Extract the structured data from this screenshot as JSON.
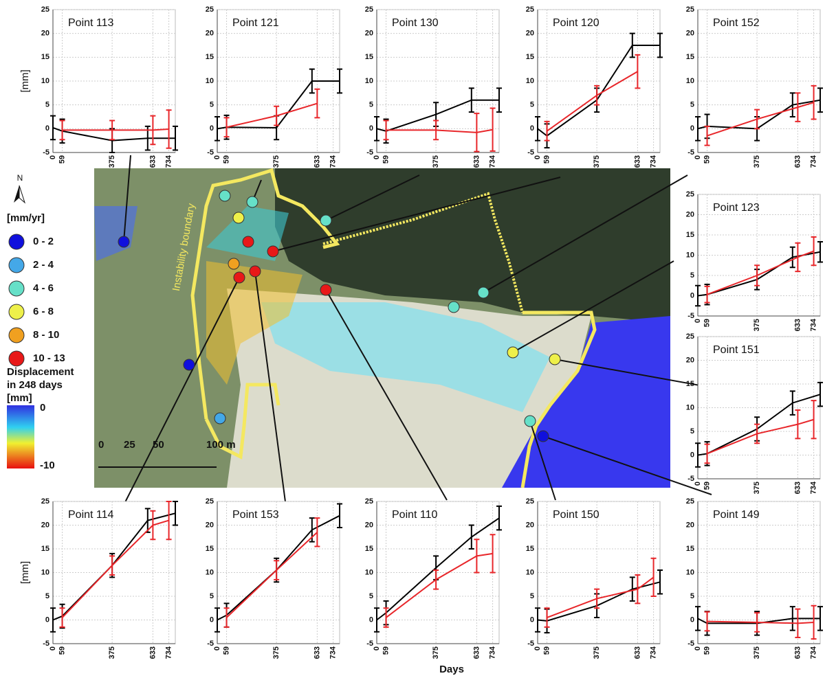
{
  "chart_data": [
    {
      "type": "line",
      "title": "Point 113",
      "ylabel": "[mm]",
      "xlim": [
        0,
        775
      ],
      "ylim": [
        -5,
        25
      ],
      "xticks": [
        0,
        59,
        375,
        633,
        734
      ],
      "yticks": [
        -5,
        0,
        5,
        10,
        15,
        20,
        25
      ],
      "grid": true,
      "series": [
        {
          "color": "#000000",
          "x": [
            0,
            59,
            375,
            600,
            775
          ],
          "values": [
            0.2,
            -0.5,
            -2.5,
            -2,
            -2
          ],
          "errors": [
            2.5,
            2.5,
            2.5,
            2.5,
            2.5
          ]
        },
        {
          "color": "#e8262a",
          "x": [
            59,
            375,
            633,
            734
          ],
          "values": [
            -0.3,
            -0.3,
            -0.3,
            -0.1
          ],
          "errors": [
            2,
            2,
            3,
            4
          ]
        }
      ]
    },
    {
      "type": "line",
      "title": "Point 121",
      "xlim": [
        0,
        775
      ],
      "ylim": [
        -5,
        25
      ],
      "xticks": [
        0,
        59,
        375,
        633,
        734
      ],
      "yticks": [
        -5,
        0,
        5,
        10,
        15,
        20,
        25
      ],
      "grid": true,
      "series": [
        {
          "color": "#000000",
          "x": [
            0,
            59,
            375,
            600,
            775
          ],
          "values": [
            0,
            0.3,
            0.2,
            10,
            10
          ],
          "errors": [
            2.5,
            2.5,
            2.5,
            2.5,
            2.5
          ]
        },
        {
          "color": "#e8262a",
          "x": [
            59,
            375,
            633,
            734
          ],
          "values": [
            0.3,
            2.7,
            5.3,
            null
          ],
          "errors": [
            2,
            2,
            3,
            null
          ]
        }
      ]
    },
    {
      "type": "line",
      "title": "Point 130",
      "xlim": [
        0,
        775
      ],
      "ylim": [
        -5,
        25
      ],
      "xticks": [
        0,
        59,
        375,
        633,
        734
      ],
      "yticks": [
        -5,
        0,
        5,
        10,
        15,
        20,
        25
      ],
      "grid": true,
      "series": [
        {
          "color": "#000000",
          "x": [
            0,
            59,
            375,
            600,
            775
          ],
          "values": [
            0,
            -0.5,
            3,
            6,
            6
          ],
          "errors": [
            2.5,
            2.5,
            2.5,
            2.5,
            2.5
          ]
        },
        {
          "color": "#e8262a",
          "x": [
            59,
            375,
            633,
            734
          ],
          "values": [
            -0.3,
            -0.3,
            -0.8,
            -0.2
          ],
          "errors": [
            2,
            2,
            4,
            4.5
          ]
        }
      ]
    },
    {
      "type": "line",
      "title": "Point 120",
      "xlim": [
        0,
        775
      ],
      "ylim": [
        -5,
        25
      ],
      "xticks": [
        0,
        59,
        375,
        633,
        734
      ],
      "yticks": [
        -5,
        0,
        5,
        10,
        15,
        20,
        25
      ],
      "grid": true,
      "series": [
        {
          "color": "#000000",
          "x": [
            0,
            59,
            375,
            600,
            775
          ],
          "values": [
            0,
            -1.5,
            6,
            17.5,
            17.5
          ],
          "errors": [
            2.5,
            2.5,
            2.5,
            2.5,
            2.5
          ]
        },
        {
          "color": "#e8262a",
          "x": [
            59,
            375,
            633,
            734
          ],
          "values": [
            -0.5,
            7,
            12,
            null
          ],
          "errors": [
            2,
            2,
            3.5,
            null
          ]
        }
      ]
    },
    {
      "type": "line",
      "title": "Point 152",
      "xlim": [
        0,
        775
      ],
      "ylim": [
        -5,
        25
      ],
      "xticks": [
        0,
        59,
        375,
        633,
        734
      ],
      "yticks": [
        -5,
        0,
        5,
        10,
        15,
        20,
        25
      ],
      "grid": true,
      "series": [
        {
          "color": "#000000",
          "x": [
            0,
            59,
            375,
            600,
            775
          ],
          "values": [
            0,
            0.5,
            0,
            5,
            6
          ],
          "errors": [
            2.5,
            2.5,
            2.5,
            2.5,
            2.5
          ]
        },
        {
          "color": "#e8262a",
          "x": [
            59,
            375,
            633,
            734
          ],
          "values": [
            -1.5,
            2,
            4.5,
            5.5
          ],
          "errors": [
            2,
            2,
            3,
            3.5
          ]
        }
      ]
    },
    {
      "type": "line",
      "title": "Point 123",
      "xlim": [
        0,
        775
      ],
      "ylim": [
        -5,
        25
      ],
      "xticks": [
        0,
        59,
        375,
        633,
        734
      ],
      "yticks": [
        -5,
        0,
        5,
        10,
        15,
        20,
        25
      ],
      "grid": true,
      "series": [
        {
          "color": "#000000",
          "x": [
            0,
            59,
            375,
            600,
            775
          ],
          "values": [
            0,
            0.3,
            4,
            9.5,
            10.8
          ],
          "errors": [
            2.5,
            2.5,
            2.5,
            2.5,
            2.5
          ]
        },
        {
          "color": "#e8262a",
          "x": [
            59,
            375,
            633,
            734
          ],
          "values": [
            0.3,
            5,
            9.5,
            11
          ],
          "errors": [
            2,
            2.5,
            3.5,
            3.5
          ]
        }
      ]
    },
    {
      "type": "line",
      "title": "Point 151",
      "xlim": [
        0,
        775
      ],
      "ylim": [
        -5,
        25
      ],
      "xticks": [
        0,
        59,
        375,
        633,
        734
      ],
      "yticks": [
        -5,
        0,
        5,
        10,
        15,
        20,
        25
      ],
      "grid": true,
      "series": [
        {
          "color": "#000000",
          "x": [
            0,
            59,
            375,
            600,
            775
          ],
          "values": [
            0,
            0.3,
            5.5,
            11,
            12.8
          ],
          "errors": [
            2.5,
            2.5,
            2.5,
            2.5,
            2.5
          ]
        },
        {
          "color": "#e8262a",
          "x": [
            59,
            375,
            633,
            734
          ],
          "values": [
            0.3,
            4.5,
            6.5,
            7.5
          ],
          "errors": [
            2,
            2,
            3,
            4
          ]
        }
      ]
    },
    {
      "type": "line",
      "title": "Point 114",
      "ylabel": "[mm]",
      "xlim": [
        0,
        775
      ],
      "ylim": [
        -5,
        25
      ],
      "xticks": [
        0,
        59,
        375,
        633,
        734
      ],
      "yticks": [
        -5,
        0,
        5,
        10,
        15,
        20,
        25
      ],
      "grid": true,
      "series": [
        {
          "color": "#000000",
          "x": [
            0,
            59,
            375,
            600,
            775
          ],
          "values": [
            0,
            0.8,
            11.5,
            21,
            22.5
          ],
          "errors": [
            2.5,
            2.5,
            2.5,
            2.5,
            2.5
          ]
        },
        {
          "color": "#e8262a",
          "x": [
            59,
            375,
            633,
            734
          ],
          "values": [
            0.5,
            11.5,
            20,
            21
          ],
          "errors": [
            2,
            2,
            3,
            4
          ]
        }
      ]
    },
    {
      "type": "line",
      "title": "Point 153",
      "xlim": [
        0,
        775
      ],
      "ylim": [
        -5,
        25
      ],
      "xticks": [
        0,
        59,
        375,
        633,
        734
      ],
      "yticks": [
        -5,
        0,
        5,
        10,
        15,
        20,
        25
      ],
      "grid": true,
      "series": [
        {
          "color": "#000000",
          "x": [
            0,
            59,
            375,
            600,
            775
          ],
          "values": [
            0,
            1,
            10.5,
            19,
            22
          ],
          "errors": [
            2.5,
            2.5,
            2.5,
            2.5,
            2.5
          ]
        },
        {
          "color": "#e8262a",
          "x": [
            59,
            375,
            633,
            734
          ],
          "values": [
            0.5,
            10.5,
            18.5,
            null
          ],
          "errors": [
            2,
            2,
            3,
            null
          ]
        }
      ]
    },
    {
      "type": "line",
      "title": "Point 110",
      "xlabel": "Days",
      "xlim": [
        0,
        775
      ],
      "ylim": [
        -5,
        25
      ],
      "xticks": [
        0,
        59,
        375,
        633,
        734
      ],
      "yticks": [
        -5,
        0,
        5,
        10,
        15,
        20,
        25
      ],
      "grid": true,
      "series": [
        {
          "color": "#000000",
          "x": [
            0,
            59,
            375,
            600,
            775
          ],
          "values": [
            0,
            1.5,
            11,
            17.5,
            21.5
          ],
          "errors": [
            2.5,
            2.5,
            2.5,
            2.5,
            2.5
          ]
        },
        {
          "color": "#e8262a",
          "x": [
            59,
            375,
            633,
            734
          ],
          "values": [
            0.5,
            8.5,
            13.5,
            14
          ],
          "errors": [
            2,
            2,
            3.5,
            4
          ]
        }
      ]
    },
    {
      "type": "line",
      "title": "Point 150",
      "xlim": [
        0,
        775
      ],
      "ylim": [
        -5,
        25
      ],
      "xticks": [
        0,
        59,
        375,
        633,
        734
      ],
      "yticks": [
        -5,
        0,
        5,
        10,
        15,
        20,
        25
      ],
      "grid": true,
      "series": [
        {
          "color": "#000000",
          "x": [
            0,
            59,
            375,
            600,
            775
          ],
          "values": [
            0,
            -0.2,
            3,
            6.5,
            8
          ],
          "errors": [
            2.5,
            2.5,
            2.5,
            2.5,
            2.5
          ]
        },
        {
          "color": "#e8262a",
          "x": [
            59,
            375,
            633,
            734
          ],
          "values": [
            0.5,
            4.5,
            6.5,
            9
          ],
          "errors": [
            2,
            2,
            3,
            4
          ]
        }
      ]
    },
    {
      "type": "line",
      "title": "Point 149",
      "xlim": [
        0,
        775
      ],
      "ylim": [
        -5,
        25
      ],
      "xticks": [
        0,
        59,
        375,
        633,
        734
      ],
      "yticks": [
        -5,
        0,
        5,
        10,
        15,
        20,
        25
      ],
      "grid": true,
      "series": [
        {
          "color": "#000000",
          "x": [
            0,
            59,
            375,
            600,
            775
          ],
          "values": [
            0.3,
            -0.7,
            -0.7,
            0.3,
            0.3
          ],
          "errors": [
            2.5,
            2.5,
            2.5,
            2.5,
            2.5
          ]
        },
        {
          "color": "#e8262a",
          "x": [
            59,
            375,
            633,
            734
          ],
          "values": [
            -0.3,
            -0.5,
            -0.7,
            -0.5
          ],
          "errors": [
            2,
            2,
            3,
            3.5
          ]
        }
      ]
    }
  ],
  "map": {
    "north": "N",
    "legend_title": "[mm/yr]",
    "classes": [
      {
        "label": "0 - 2",
        "color": "#1010dd"
      },
      {
        "label": "2 - 4",
        "color": "#44a8e8"
      },
      {
        "label": "4 - 6",
        "color": "#66e0c8"
      },
      {
        "label": "6 - 8",
        "color": "#eef04a"
      },
      {
        "label": "8 - 10",
        "color": "#f0a020"
      },
      {
        "label": "10 - 13",
        "color": "#e81818"
      }
    ],
    "colorbar_title": [
      "Displacement",
      "in 248 days",
      "[mm]"
    ],
    "colorbar_ticks": [
      0,
      -10
    ],
    "scale_labels": [
      "0",
      "25",
      "50",
      "100 m"
    ],
    "boundary_label": "Instability boundary"
  }
}
